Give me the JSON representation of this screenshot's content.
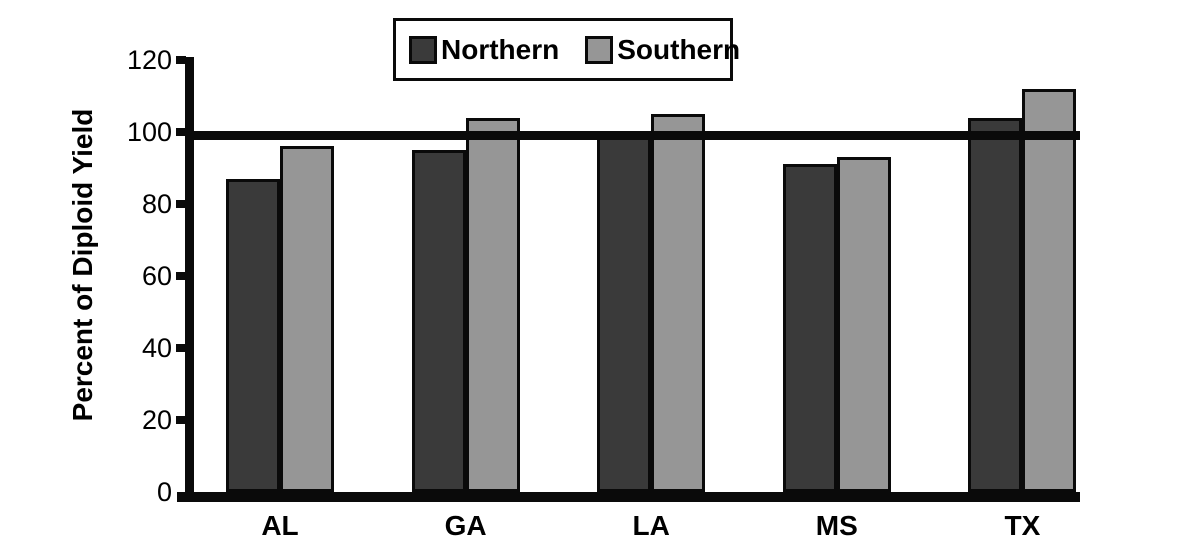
{
  "chart_data": {
    "type": "bar",
    "title": "",
    "categories": [
      "AL",
      "GA",
      "LA",
      "MS",
      "TX"
    ],
    "series": [
      {
        "name": "Northern",
        "color": "#3a3a3a",
        "values": [
          87,
          95,
          99,
          91,
          104
        ]
      },
      {
        "name": "Southern",
        "color": "#969696",
        "values": [
          96,
          104,
          105,
          93,
          112
        ]
      }
    ],
    "xlabel": "",
    "ylabel": "Percent of Diploid Yield",
    "ylim": [
      0,
      120
    ],
    "yticks": [
      0,
      20,
      40,
      60,
      80,
      100,
      120
    ],
    "reference_line": 100,
    "grid": false,
    "legend_position": "top-center",
    "axis_color": "#0a0a0a",
    "background_color": "#ffffff"
  }
}
